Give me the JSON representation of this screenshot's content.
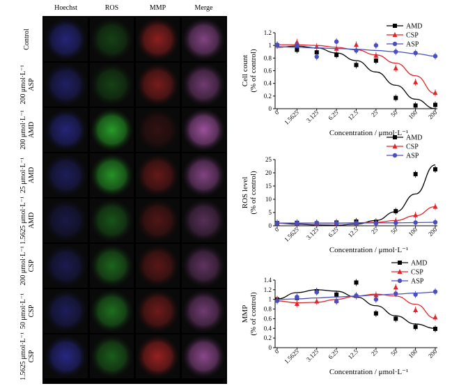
{
  "micrograph_panel": {
    "column_headers": [
      "Hoechst",
      "ROS",
      "MMP",
      "Merge"
    ],
    "rows": [
      {
        "lines": [
          "Control"
        ],
        "tones": {
          "Hoechst": 0.55,
          "ROS": 0.3,
          "MMP": 0.65,
          "Merge": 0.7
        }
      },
      {
        "lines": [
          "200 μmol·L⁻¹",
          "ASP"
        ],
        "tones": {
          "Hoechst": 0.45,
          "ROS": 0.3,
          "MMP": 0.55,
          "Merge": 0.6
        }
      },
      {
        "lines": [
          "200 μmol·L⁻¹",
          "AMD"
        ],
        "tones": {
          "Hoechst": 0.55,
          "ROS": 0.8,
          "MMP": 0.2,
          "Merge": 0.85
        }
      },
      {
        "lines": [
          "25 μmol·L⁻¹",
          "AMD"
        ],
        "tones": {
          "Hoechst": 0.4,
          "ROS": 0.75,
          "MMP": 0.45,
          "Merge": 0.7
        }
      },
      {
        "lines": [
          "1.5625 μmol·L⁻¹",
          "AMD"
        ],
        "tones": {
          "Hoechst": 0.3,
          "ROS": 0.4,
          "MMP": 0.35,
          "Merge": 0.45
        }
      },
      {
        "lines": [
          "200 μmol·L⁻¹",
          "CSP"
        ],
        "tones": {
          "Hoechst": 0.35,
          "ROS": 0.5,
          "MMP": 0.4,
          "Merge": 0.5
        }
      },
      {
        "lines": [
          "50 μmol·L⁻¹",
          "CSP"
        ],
        "tones": {
          "Hoechst": 0.4,
          "ROS": 0.55,
          "MMP": 0.5,
          "Merge": 0.6
        }
      },
      {
        "lines": [
          "1.5625 μmol·L⁻¹",
          "CSP"
        ],
        "tones": {
          "Hoechst": 0.6,
          "ROS": 0.45,
          "MMP": 0.7,
          "Merge": 0.75
        }
      }
    ],
    "channel_colors": {
      "Hoechst": "#3a3ad0",
      "ROS": "#2fbf2f",
      "MMP": "#d02a2a",
      "Merge": "#b45cb4"
    }
  },
  "chart_data": [
    {
      "type": "scatter",
      "id": "cell-count",
      "categories": [
        "0",
        "1.5625",
        "3.125",
        "6.25",
        "12.5",
        "25",
        "50",
        "100",
        "200"
      ],
      "xlabel": "Concentration / μmol·L⁻¹",
      "ylabel_lines": [
        "Cell count",
        "(% of control)"
      ],
      "ylim": [
        0,
        1.2
      ],
      "yticks": [
        0,
        0.2,
        0.4,
        0.6,
        0.8,
        1.0,
        1.2
      ],
      "ytick_labels": [
        "0",
        "0.2",
        "0.4",
        "0.6",
        "0.8",
        "1",
        "1.2"
      ],
      "legend_position": "top-right",
      "series": [
        {
          "name": "AMD",
          "color": "#000000",
          "marker": "square",
          "values": [
            1.0,
            0.93,
            0.89,
            0.85,
            0.69,
            0.76,
            0.17,
            0.05,
            0.06
          ],
          "fit": [
            0.97,
            0.99,
            0.96,
            0.88,
            0.76,
            0.58,
            0.37,
            0.15,
            -0.04
          ]
        },
        {
          "name": "CSP",
          "color": "#e0252b",
          "marker": "triangle",
          "values": [
            1.0,
            1.05,
            0.98,
            0.95,
            1.01,
            0.84,
            0.64,
            0.42,
            0.25
          ],
          "fit": [
            1.01,
            1.01,
            1.0,
            0.97,
            0.93,
            0.85,
            0.72,
            0.52,
            0.24
          ]
        },
        {
          "name": "ASP",
          "color": "#4a4fbf",
          "marker": "circle",
          "values": [
            1.01,
            1.0,
            0.82,
            1.06,
            0.92,
            1.0,
            0.9,
            0.88,
            0.83
          ],
          "fit": [
            0.98,
            0.97,
            0.96,
            0.95,
            0.94,
            0.92,
            0.9,
            0.87,
            0.83
          ]
        }
      ]
    },
    {
      "type": "scatter",
      "id": "ros-level",
      "categories": [
        "0",
        "1.5625",
        "3.125",
        "6.25",
        "12.5",
        "25",
        "50",
        "100",
        "200"
      ],
      "xlabel": "Concentration / μmol·L⁻¹",
      "ylabel_lines": [
        "ROS level",
        "(% of control)"
      ],
      "ylim": [
        0,
        25
      ],
      "yticks": [
        0,
        5,
        10,
        15,
        20,
        25
      ],
      "ytick_labels": [
        "0",
        "5",
        "10",
        "15",
        "20",
        "25"
      ],
      "legend_position": "top-right",
      "series": [
        {
          "name": "AMD",
          "color": "#000000",
          "marker": "square",
          "values": [
            1.0,
            1.1,
            0.9,
            1.2,
            1.6,
            1.5,
            5.5,
            19.5,
            21.3
          ],
          "fit": [
            1.0,
            0.6,
            0.3,
            0.2,
            0.6,
            2.0,
            5.3,
            12.0,
            23.0
          ]
        },
        {
          "name": "CSP",
          "color": "#e0252b",
          "marker": "triangle",
          "values": [
            1.0,
            0.9,
            0.9,
            1.0,
            1.0,
            1.2,
            1.8,
            4.0,
            7.2
          ],
          "fit": [
            1.0,
            1.0,
            1.0,
            1.0,
            1.1,
            1.3,
            2.0,
            3.8,
            7.2
          ]
        },
        {
          "name": "ASP",
          "color": "#4a4fbf",
          "marker": "circle",
          "values": [
            1.0,
            1.0,
            1.1,
            1.0,
            1.0,
            1.0,
            1.1,
            1.2,
            1.3
          ],
          "fit": [
            1.0,
            1.0,
            1.0,
            1.0,
            1.0,
            1.1,
            1.1,
            1.2,
            1.3
          ]
        }
      ]
    },
    {
      "type": "scatter",
      "id": "mmp",
      "categories": [
        "0",
        "1.5625",
        "3.125",
        "6.25",
        "12.5",
        "25",
        "50",
        "100",
        "200"
      ],
      "xlabel": "Concentration / μmol·L⁻¹",
      "ylabel_lines": [
        "MMP",
        "(% of control)"
      ],
      "ylim": [
        0,
        1.4
      ],
      "yticks": [
        0,
        0.2,
        0.4,
        0.6,
        0.8,
        1.0,
        1.2,
        1.4
      ],
      "ytick_labels": [
        "0",
        "0.2",
        "0.4",
        "0.6",
        "0.8",
        "1",
        "1.2",
        "1.4"
      ],
      "legend_position": "top-right",
      "series": [
        {
          "name": "AMD",
          "color": "#000000",
          "marker": "square",
          "values": [
            1.0,
            1.03,
            1.17,
            1.1,
            1.35,
            0.71,
            0.6,
            0.43,
            0.39
          ],
          "fit": [
            1.01,
            1.14,
            1.2,
            1.17,
            1.05,
            0.87,
            0.66,
            0.49,
            0.4
          ]
        },
        {
          "name": "CSP",
          "color": "#e0252b",
          "marker": "triangle",
          "values": [
            1.0,
            0.91,
            0.96,
            0.97,
            1.07,
            1.09,
            1.25,
            0.78,
            0.63
          ],
          "fit": [
            0.97,
            0.93,
            0.94,
            1.0,
            1.07,
            1.11,
            1.07,
            0.9,
            0.61
          ]
        },
        {
          "name": "ASP",
          "color": "#4a4fbf",
          "marker": "circle",
          "values": [
            0.97,
            1.05,
            1.15,
            0.96,
            1.08,
            1.0,
            1.12,
            1.1,
            1.16
          ],
          "fit": [
            1.0,
            1.01,
            1.03,
            1.05,
            1.07,
            1.09,
            1.11,
            1.13,
            1.15
          ]
        }
      ]
    }
  ]
}
